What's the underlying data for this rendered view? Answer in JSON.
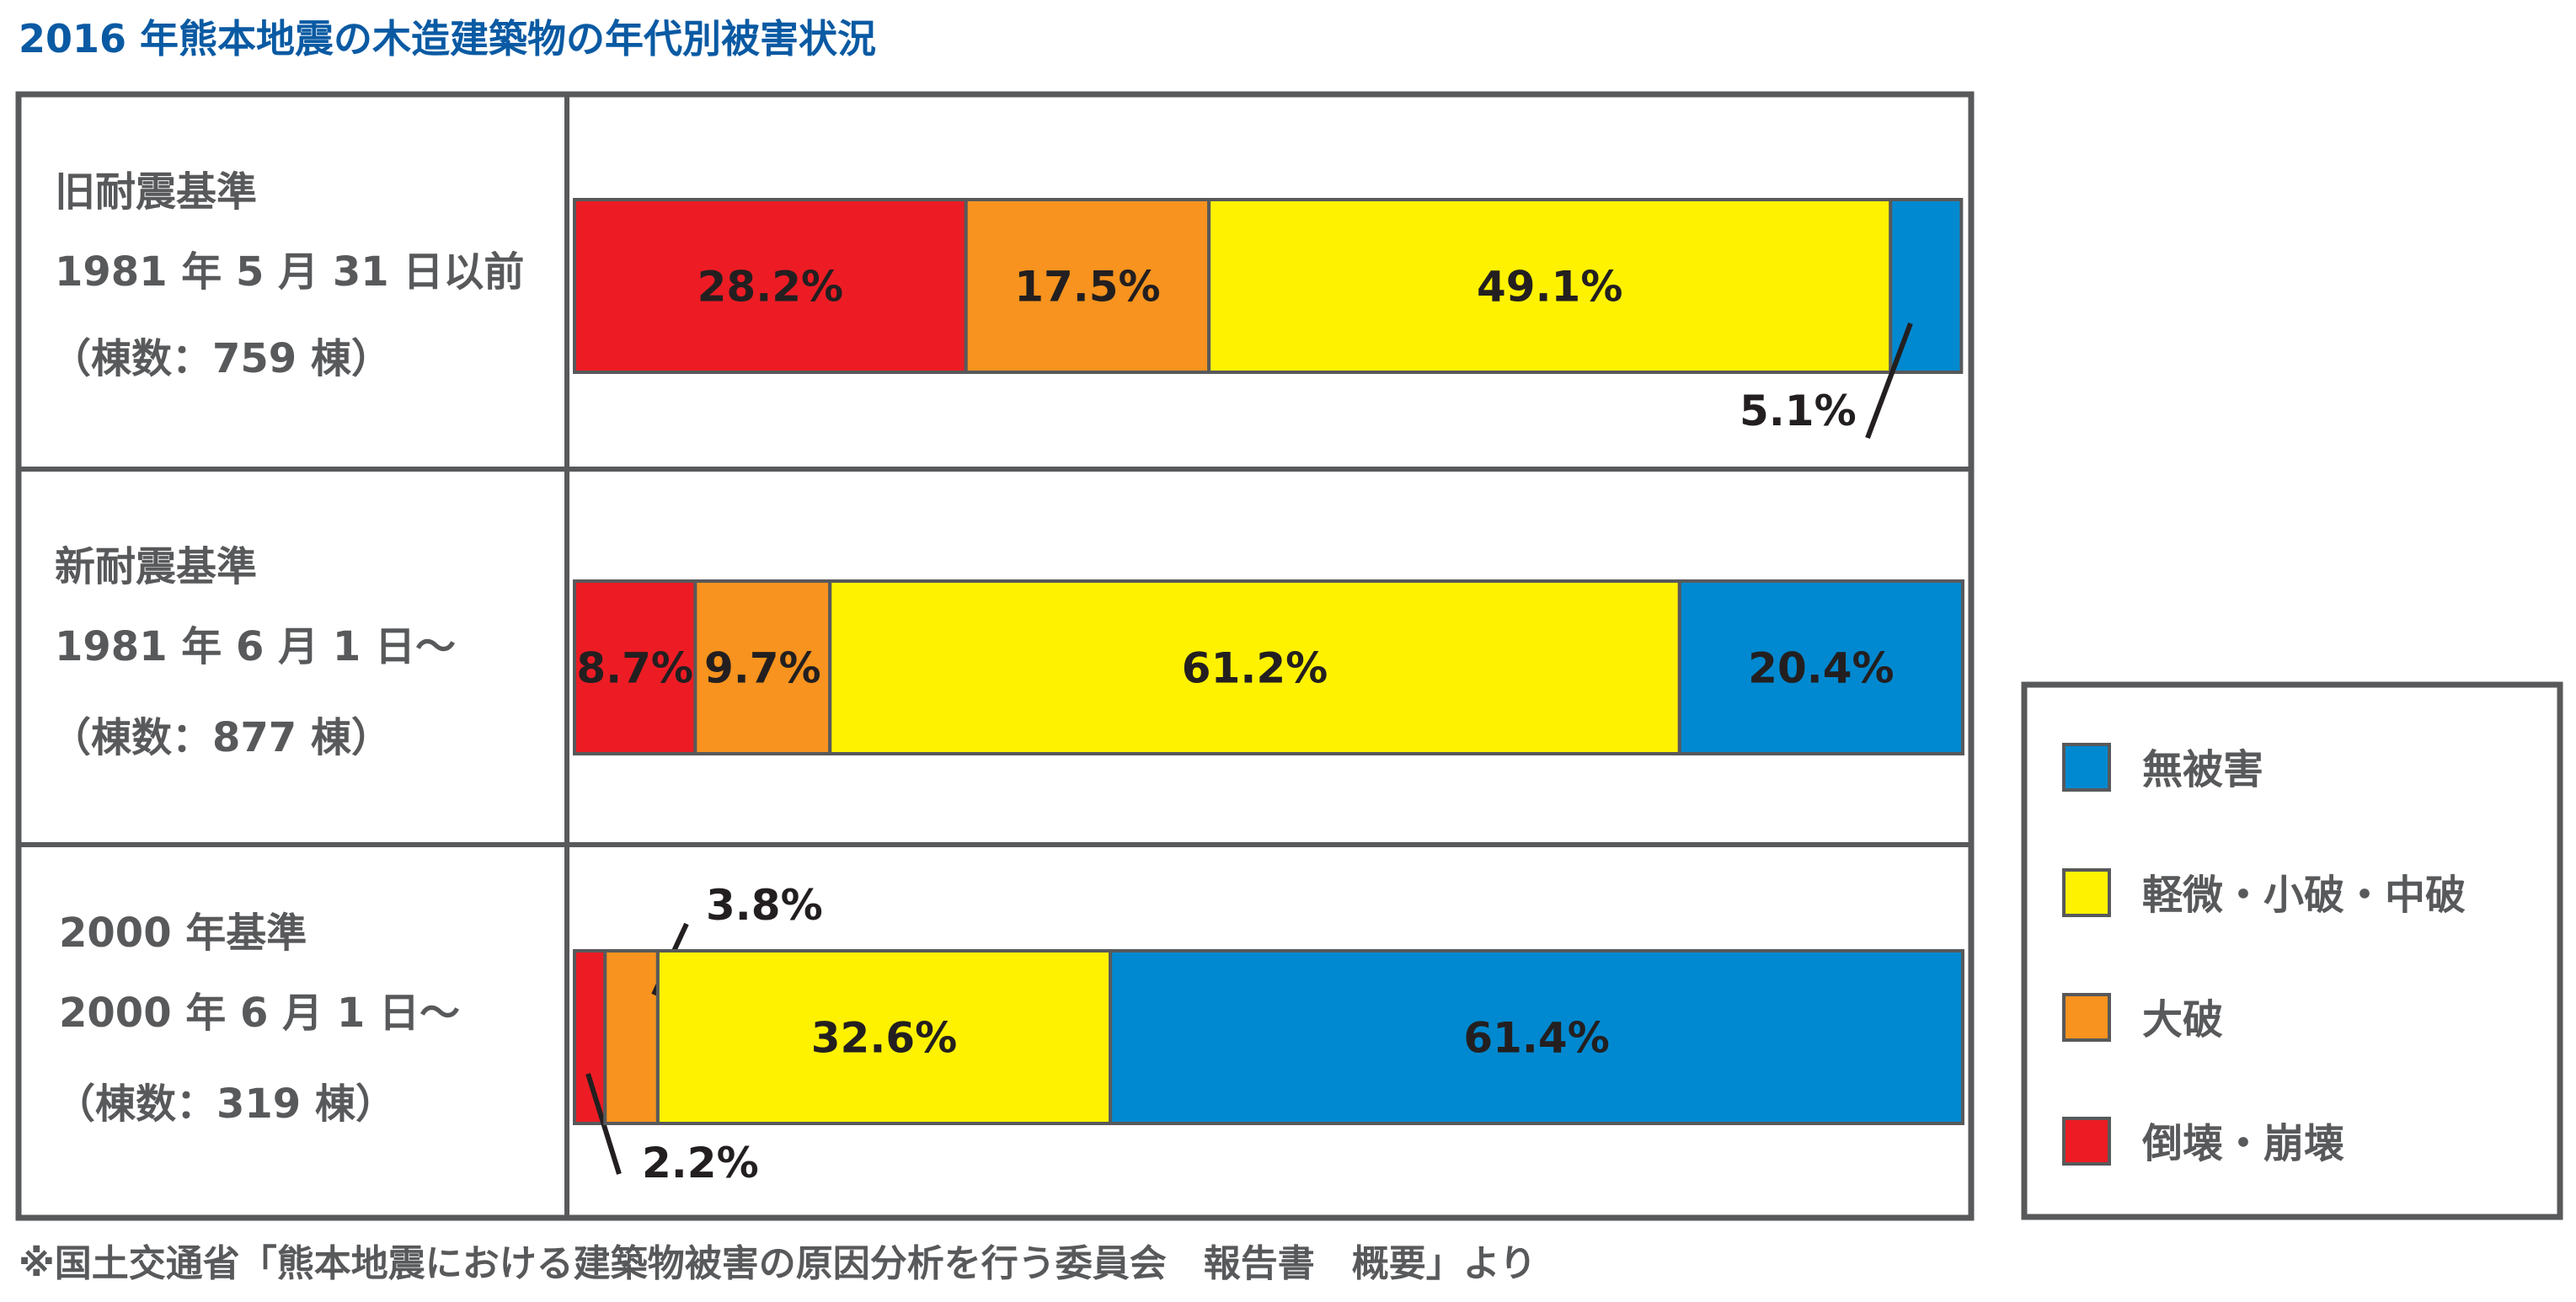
{
  "colors": {
    "title": "#0a5aa3",
    "frame": "#58595b",
    "collapse": "#ed1c24",
    "major": "#f7931e",
    "minor": "#fff200",
    "none": "#0089d0",
    "label": "#231f20"
  },
  "chart_data": {
    "type": "bar",
    "orientation": "horizontal",
    "stacked": true,
    "title": "2016 年熊本地震の木造建築物の年代別被害状況",
    "xlim": [
      0,
      100
    ],
    "unit": "%",
    "categories": [
      {
        "name": "旧耐震基準",
        "period": "1981 年 5 月 31 日以前",
        "count": "（棟数：759 棟）"
      },
      {
        "name": "新耐震基準",
        "period": "1981 年 6 月 1 日〜",
        "count": "（棟数：877 棟）"
      },
      {
        "name": "2000 年基準",
        "period": "2000 年 6 月 1 日〜",
        "count": "（棟数：319 棟）"
      }
    ],
    "series": [
      {
        "name": "倒壊・崩壊",
        "key": "collapse",
        "values": [
          28.2,
          8.7,
          2.2
        ]
      },
      {
        "name": "大破",
        "key": "major",
        "values": [
          17.5,
          9.7,
          3.8
        ]
      },
      {
        "name": "軽微・小破・中破",
        "key": "minor",
        "values": [
          49.1,
          61.2,
          32.6
        ]
      },
      {
        "name": "無被害",
        "key": "none",
        "values": [
          5.1,
          20.4,
          61.4
        ]
      }
    ],
    "data_labels": [
      [
        "28.2%",
        "17.5%",
        "49.1%",
        "5.1%"
      ],
      [
        "8.7%",
        "9.7%",
        "61.2%",
        "20.4%"
      ],
      [
        "2.2%",
        "3.8%",
        "32.6%",
        "61.4%"
      ]
    ],
    "legend_order": [
      "無被害",
      "軽微・小破・中破",
      "大破",
      "倒壊・崩壊"
    ],
    "legend_position": "right"
  },
  "footnote": "※国土交通省「熊本地震における建築物被害の原因分析を行う委員会　報告書　概要」より"
}
